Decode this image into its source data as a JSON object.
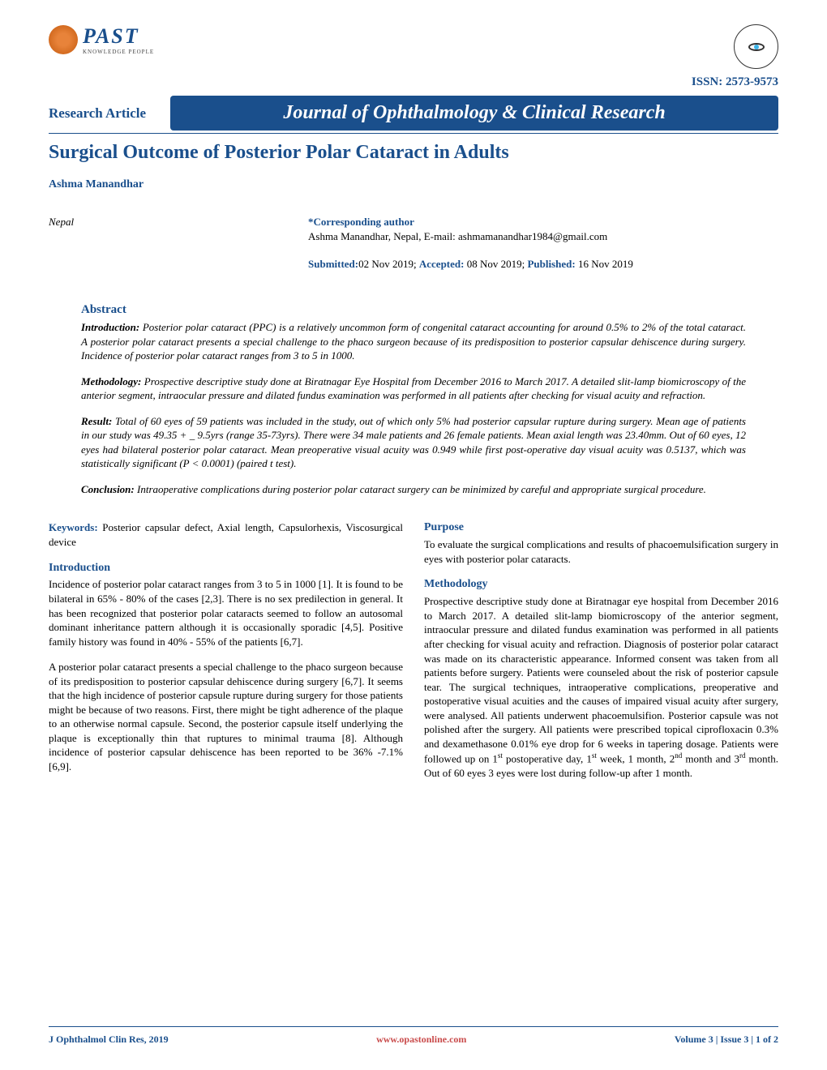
{
  "logo": {
    "brand": "PAST",
    "tagline": "KNOWLEDGE PEOPLE"
  },
  "issn": "ISSN: 2573-9573",
  "article_type": "Research Article",
  "journal_name": "Journal of Ophthalmology & Clinical Research",
  "title": "Surgical Outcome of Posterior Polar Cataract in Adults",
  "author": "Ashma Manandhar",
  "affiliation": "Nepal",
  "corresponding": {
    "label": "*Corresponding author",
    "text": "Ashma Manandhar, Nepal, E-mail: ashmamanandhar1984@gmail.com"
  },
  "dates": {
    "submitted_label": "Submitted:",
    "submitted": "02 Nov 2019; ",
    "accepted_label": "Accepted:",
    "accepted": " 08 Nov 2019; ",
    "published_label": "Published:",
    "published": " 16 Nov 2019"
  },
  "abstract": {
    "heading": "Abstract",
    "introduction_label": "Introduction:",
    "introduction": " Posterior polar cataract (PPC) is a relatively uncommon form of congenital cataract accounting for around 0.5% to 2% of the total cataract. A posterior polar cataract presents a special challenge to the phaco surgeon because of its predisposition to posterior capsular dehiscence during surgery. Incidence of posterior polar cataract ranges from 3 to 5 in 1000.",
    "methodology_label": "Methodology:",
    "methodology": " Prospective descriptive study done at Biratnagar Eye Hospital from December 2016 to March 2017. A detailed slit-lamp biomicroscopy of the anterior segment, intraocular pressure and dilated fundus examination was performed in all patients after checking for visual acuity and refraction.",
    "result_label": "Result:",
    "result": " Total of 60 eyes of 59 patients was included in the study, out of which only 5% had posterior capsular rupture during surgery. Mean age of patients in our study was 49.35 + _ 9.5yrs (range 35-73yrs). There were 34 male patients and 26 female patients. Mean axial length was 23.40mm. Out of 60 eyes, 12 eyes had bilateral posterior polar cataract. Mean preoperative visual acuity was 0.949 while first post-operative day visual acuity was 0.5137, which was statistically significant (P < 0.0001) (paired t test).",
    "conclusion_label": "Conclusion:",
    "conclusion": " Intraoperative complications during posterior polar cataract surgery can be minimized by careful and appropriate surgical procedure."
  },
  "keywords_label": "Keywords:",
  "keywords": " Posterior capsular defect, Axial length, Capsulorhexis, Viscosurgical device",
  "introduction_heading": "Introduction",
  "intro_p1": "Incidence of posterior polar cataract ranges from 3 to 5 in 1000 [1]. It is found to be bilateral in 65% - 80% of the cases [2,3]. There is no sex predilection in general. It has been recognized that posterior polar cataracts seemed to follow an autosomal dominant inheritance pattern although it is occasionally sporadic [4,5]. Positive family history was found in 40% - 55% of the patients [6,7].",
  "intro_p2": "A posterior polar cataract presents a special challenge to the phaco surgeon because of its predisposition to posterior capsular dehiscence during surgery [6,7]. It seems that the high incidence of posterior capsule rupture during surgery for those patients might be because of two reasons. First, there might be tight adherence of the plaque to an otherwise normal capsule. Second, the posterior capsule itself underlying the plaque is exceptionally thin that ruptures to minimal trauma [8]. Although incidence of posterior capsular dehiscence has been reported to be 36% -7.1% [6,9].",
  "purpose_heading": "Purpose",
  "purpose_text": "To evaluate the surgical complications and results of phacoemulsification surgery in eyes with posterior polar cataracts.",
  "methodology_heading": "Methodology",
  "methodology_text_a": "Prospective descriptive study done at Biratnagar eye hospital from December 2016 to March 2017. A detailed slit-lamp biomicroscopy of the anterior segment, intraocular pressure and dilated fundus examination was performed in all patients after checking for visual acuity and refraction. Diagnosis of posterior polar cataract was made on its characteristic appearance. Informed consent was taken from all patients before surgery. Patients were counseled about the risk of posterior capsule tear. The surgical techniques, intraoperative complications, preoperative and postoperative visual acuities and the causes of impaired visual acuity after surgery, were analysed. All patients underwent phacoemulsifion. Posterior capsule was not polished after the surgery. All patients were prescribed topical ciprofloxacin 0.3% and dexamethasone 0.01% eye drop for 6 weeks in tapering dosage. Patients were followed up on 1",
  "methodology_text_b": " postoperative day, 1",
  "methodology_text_c": " week, 1 month, 2",
  "methodology_text_d": " month and 3",
  "methodology_text_e": " month. Out of 60 eyes 3 eyes were lost during follow-up after 1 month.",
  "sup_st": "st",
  "sup_nd": "nd",
  "sup_rd": "rd",
  "footer": {
    "left": "J Ophthalmol Clin Res, 2019",
    "center": "www.opastonline.com",
    "right": "Volume 3 | Issue 3 | 1 of 2"
  },
  "colors": {
    "primary": "#1a4f8c",
    "accent": "#c94b4b",
    "logo_orange": "#e8833a"
  }
}
